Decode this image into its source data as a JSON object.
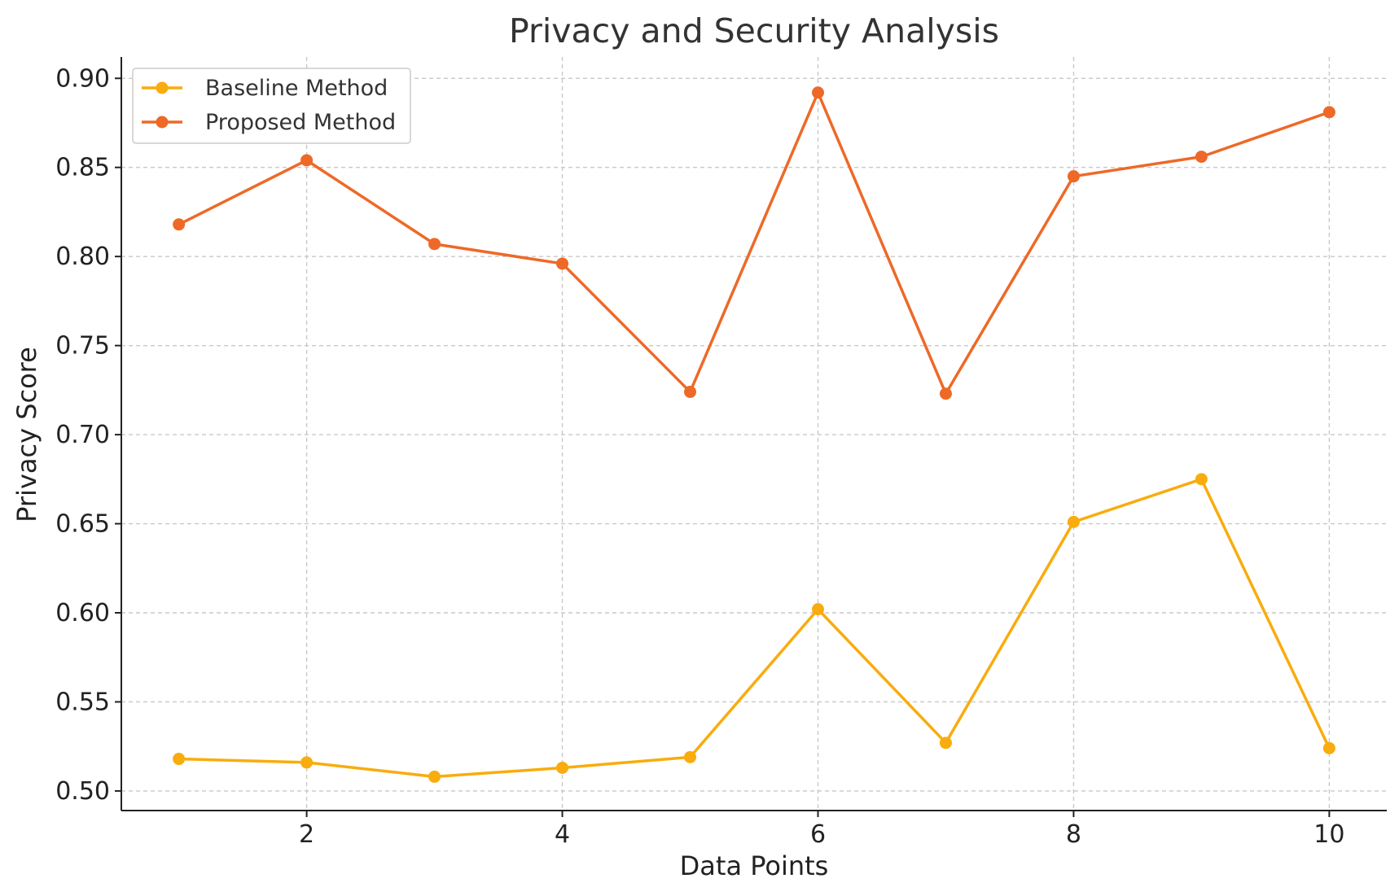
{
  "chart_data": {
    "type": "line",
    "title": "Privacy and Security Analysis",
    "xlabel": "Data Points",
    "ylabel": "Privacy Score",
    "x": [
      1,
      2,
      3,
      4,
      5,
      6,
      7,
      8,
      9,
      10
    ],
    "xlim": [
      0.55,
      10.45
    ],
    "ylim": [
      0.489,
      0.912
    ],
    "xticks": [
      2,
      4,
      6,
      8,
      10
    ],
    "xtick_labels": [
      "2",
      "4",
      "6",
      "8",
      "10"
    ],
    "yticks": [
      0.5,
      0.55,
      0.6,
      0.65,
      0.7,
      0.75,
      0.8,
      0.85,
      0.9
    ],
    "ytick_labels": [
      "0.50",
      "0.55",
      "0.60",
      "0.65",
      "0.70",
      "0.75",
      "0.80",
      "0.85",
      "0.90"
    ],
    "grid": true,
    "legend_position": "top-left",
    "series": [
      {
        "name": "Baseline Method",
        "color": "#f9ac0e",
        "marker": "circle",
        "values": [
          0.518,
          0.516,
          0.508,
          0.513,
          0.519,
          0.602,
          0.527,
          0.651,
          0.675,
          0.524
        ]
      },
      {
        "name": "Proposed Method",
        "color": "#ee6927",
        "marker": "circle",
        "values": [
          0.818,
          0.854,
          0.807,
          0.796,
          0.724,
          0.892,
          0.723,
          0.845,
          0.856,
          0.881
        ]
      }
    ]
  }
}
